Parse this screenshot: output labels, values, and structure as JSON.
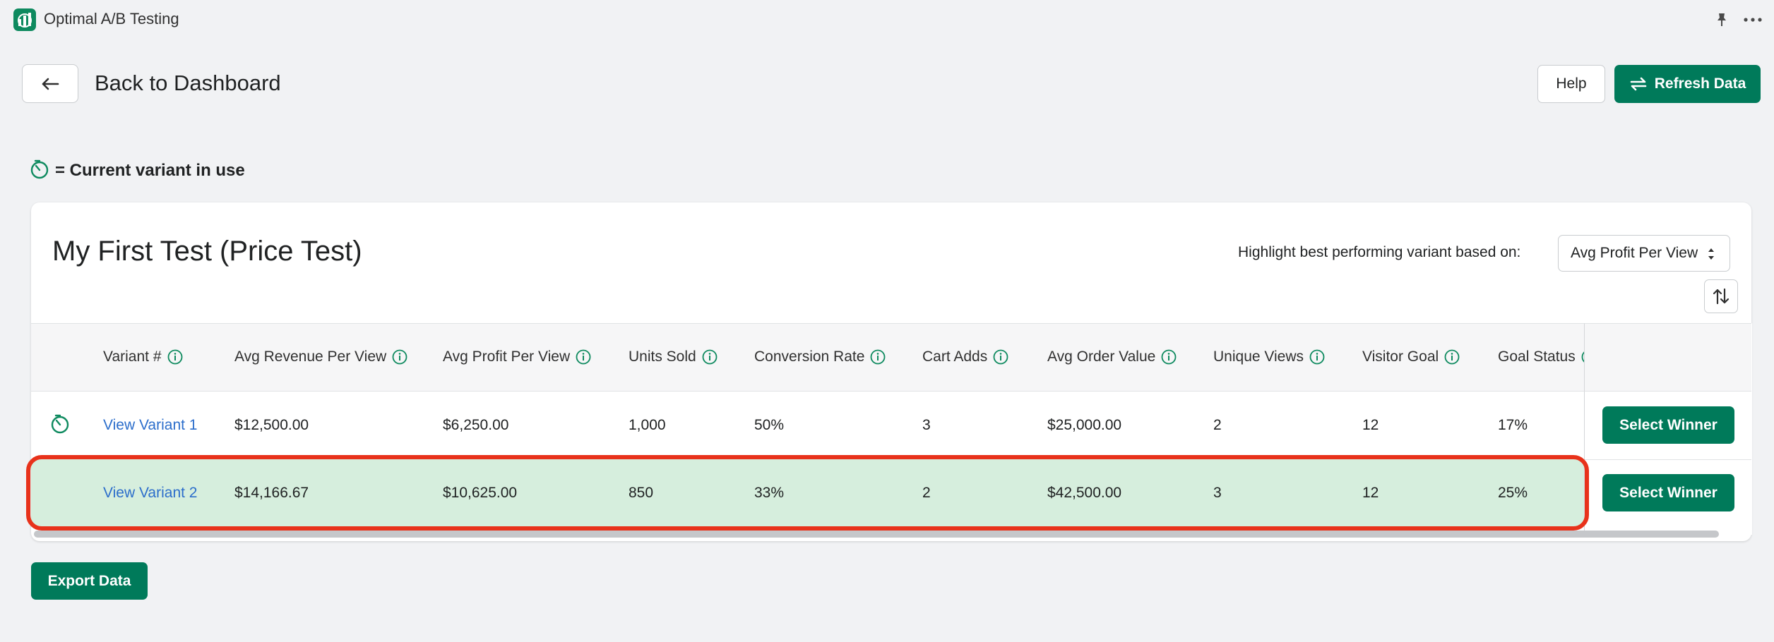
{
  "app": {
    "title": "Optimal A/B Testing",
    "brand_color": "#007a5a",
    "logo_icon": "chart-logo-icon"
  },
  "header": {
    "back_label": "Back to Dashboard",
    "help_label": "Help",
    "refresh_label": "Refresh Data"
  },
  "legend": {
    "text": "= Current variant in use",
    "icon": "timer-icon"
  },
  "test": {
    "title": "My First Test (Price Test)",
    "highlight_label": "Highlight best performing variant based on:",
    "highlight_value": "Avg Profit Per View"
  },
  "table": {
    "columns": [
      "Variant #",
      "Avg Revenue Per View",
      "Avg Profit Per View",
      "Units Sold",
      "Conversion Rate",
      "Cart Adds",
      "Avg Order Value",
      "Unique Views",
      "Visitor Goal",
      "Goal Status"
    ],
    "rows": [
      {
        "current": true,
        "variant": "View Variant 1",
        "avg_revenue": "$12,500.00",
        "avg_profit": "$6,250.00",
        "units_sold": "1,000",
        "conversion_rate": "50%",
        "cart_adds": "3",
        "avg_order_value": "$25,000.00",
        "unique_views": "2",
        "visitor_goal": "12",
        "goal_status": "17%",
        "action": "Select Winner"
      },
      {
        "current": false,
        "highlighted": true,
        "variant": "View Variant 2",
        "avg_revenue": "$14,166.67",
        "avg_profit": "$10,625.00",
        "units_sold": "850",
        "conversion_rate": "33%",
        "cart_adds": "2",
        "avg_order_value": "$42,500.00",
        "unique_views": "3",
        "visitor_goal": "12",
        "goal_status": "25%",
        "action": "Select Winner"
      }
    ]
  },
  "footer": {
    "export_label": "Export Data"
  }
}
